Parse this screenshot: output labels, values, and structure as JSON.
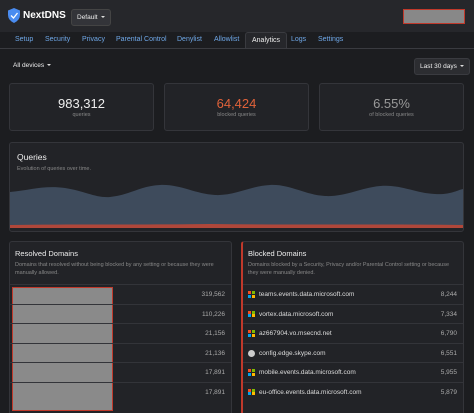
{
  "header": {
    "brand": "NextDNS",
    "profile": "Default"
  },
  "tabs": [
    {
      "label": "Setup"
    },
    {
      "label": "Security"
    },
    {
      "label": "Privacy"
    },
    {
      "label": "Parental Control"
    },
    {
      "label": "Denylist"
    },
    {
      "label": "Allowlist"
    },
    {
      "label": "Analytics",
      "active": true
    },
    {
      "label": "Logs"
    },
    {
      "label": "Settings"
    }
  ],
  "filters": {
    "devices": "All devices",
    "range": "Last 30 days"
  },
  "stats": [
    {
      "value": "983,312",
      "label": "queries"
    },
    {
      "value": "64,424",
      "label": "blocked queries"
    },
    {
      "value": "6.55%",
      "label": "of blocked queries"
    }
  ],
  "queries": {
    "title": "Queries",
    "subtitle": "Evolution of queries over time."
  },
  "resolved": {
    "title": "Resolved Domains",
    "description": "Domains that resolved without being blocked by any setting or because they were manually allowed.",
    "counts": [
      "319,562",
      "110,226",
      "21,156",
      "21,136",
      "17,891",
      "17,891"
    ]
  },
  "blocked": {
    "title": "Blocked Domains",
    "description": "Domains blocked by a Security, Privacy and/or Parental Control setting or because they were manually denied.",
    "rows": [
      {
        "domain": "teams.events.data.microsoft.com",
        "count": "8,244"
      },
      {
        "domain": "vortex.data.microsoft.com",
        "count": "7,334"
      },
      {
        "domain": "az667904.vo.msecnd.net",
        "count": "6,790"
      },
      {
        "domain": "config.edge.skype.com",
        "count": "6,551"
      },
      {
        "domain": "mobile.events.data.microsoft.com",
        "count": "5,955"
      },
      {
        "domain": "eu-office.events.data.microsoft.com",
        "count": "5,879"
      }
    ]
  }
}
